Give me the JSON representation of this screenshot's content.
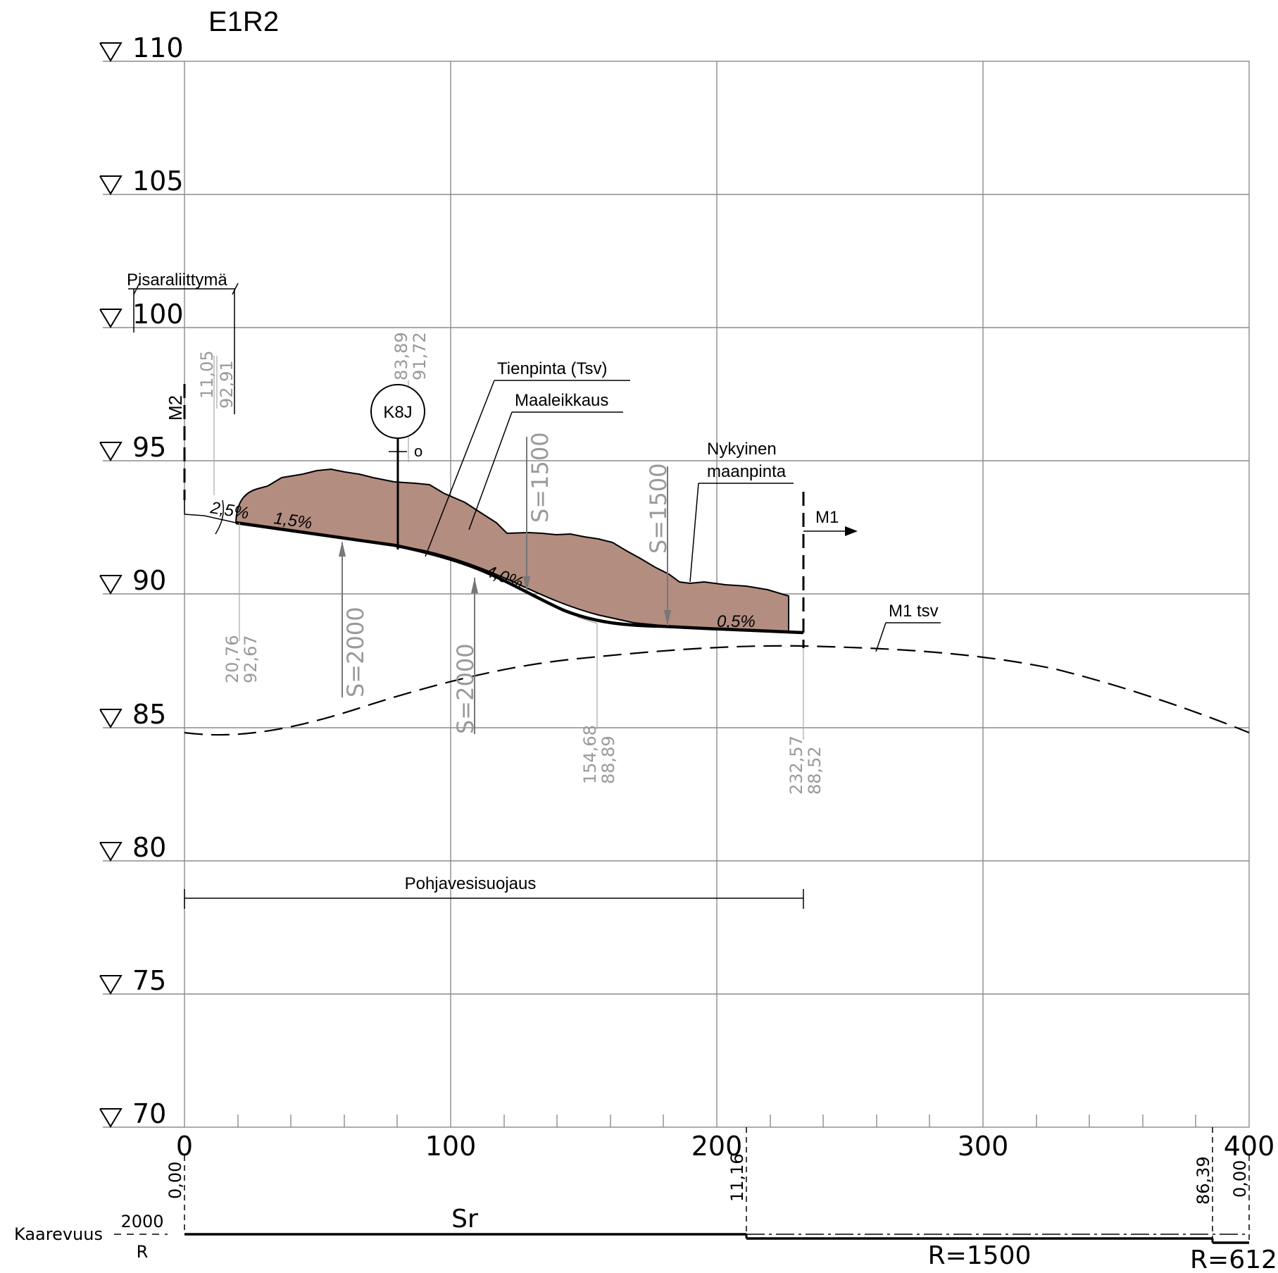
{
  "title": "E1R2",
  "elevations": [
    "110",
    "105",
    "100",
    "95",
    "90",
    "85",
    "80",
    "75",
    "70"
  ],
  "stations": [
    "0",
    "100",
    "200",
    "300",
    "400"
  ],
  "labels": {
    "pisaraliittyma": "Pisaraliittymä",
    "tienpinta": "Tienpinta (Tsv)",
    "maaleikkaus": "Maaleikkaus",
    "nykyinen_1": "Nykyinen",
    "nykyinen_2": "maanpinta",
    "m1": "M1",
    "m1_tsv": "M1 tsv",
    "m2": "M2",
    "k8j": "K8J",
    "k8j_o": "o",
    "pohjavesisuojaus": "Pohjavesisuojaus"
  },
  "slopes": [
    "2,5%",
    "1,5%",
    "4,0%",
    "0,5%"
  ],
  "vertical_curves": [
    "S=2000",
    "S=2000",
    "S=1500",
    "S=1500"
  ],
  "points": [
    {
      "station": "11,05",
      "elevation": "92,91"
    },
    {
      "station": "83,89",
      "elevation": "91,72"
    },
    {
      "station": "20,76",
      "elevation": "92,67"
    },
    {
      "station": "154,68",
      "elevation": "88,89"
    },
    {
      "station": "232,57",
      "elevation": "88,52"
    }
  ],
  "curvature": {
    "title": "Kaarevuus",
    "scale": "2000",
    "r_label": "R",
    "sr": "Sr",
    "r1500": "R=1500",
    "r612": "R=612",
    "tick_values": [
      "0,00",
      "11,16",
      "86,39",
      "0,00"
    ]
  },
  "colors": {
    "cut_fill": "#b38d80",
    "grid": "#8c8c8c",
    "annotation_gray": "#9a9a9a"
  }
}
